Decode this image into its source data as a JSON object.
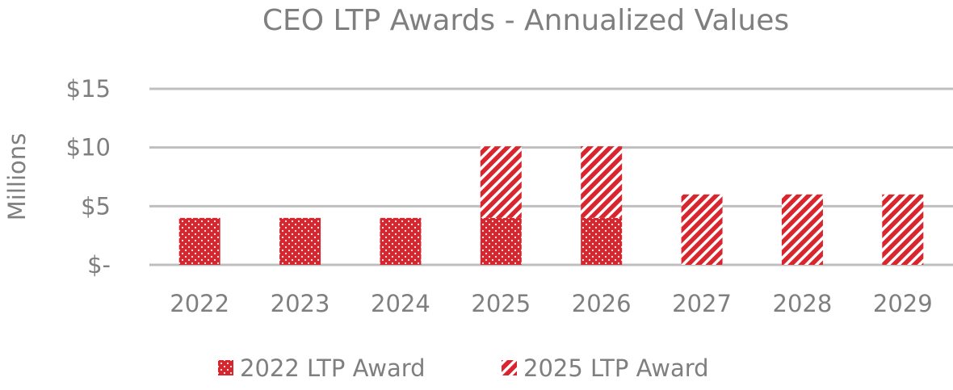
{
  "chart_data": {
    "type": "bar",
    "stacked": true,
    "title": "CEO LTP Awards - Annualized Values",
    "ylabel": "Millions",
    "xlabel": "",
    "ylim": [
      0,
      15
    ],
    "yticks": [
      {
        "value": 0,
        "label": "$-"
      },
      {
        "value": 5,
        "label": "$5"
      },
      {
        "value": 10,
        "label": "$10"
      },
      {
        "value": 15,
        "label": "$15"
      }
    ],
    "grid": true,
    "legend_position": "bottom",
    "categories": [
      "2022",
      "2023",
      "2024",
      "2025",
      "2026",
      "2027",
      "2028",
      "2029"
    ],
    "series": [
      {
        "name": "2022 LTP Award",
        "pattern": "dots",
        "color": "#d9262e",
        "values": [
          4,
          4,
          4,
          4,
          4,
          0,
          0,
          0
        ]
      },
      {
        "name": "2025 LTP Award",
        "pattern": "diagonal-stripes",
        "color": "#d9262e",
        "values": [
          0,
          0,
          0,
          6.1,
          6.1,
          6,
          6,
          6
        ]
      }
    ]
  }
}
